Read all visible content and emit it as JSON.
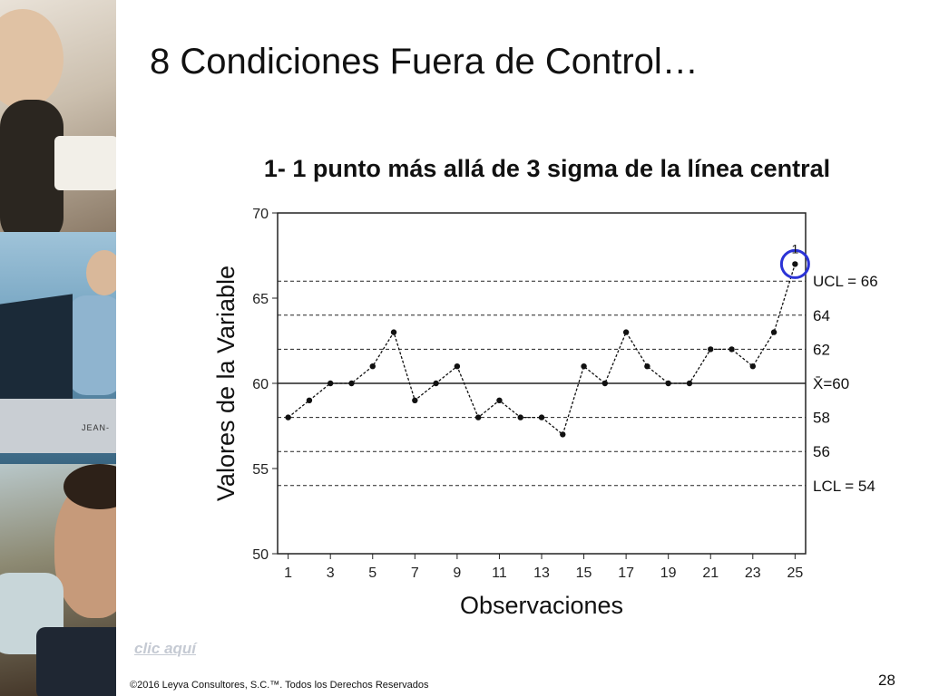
{
  "slide": {
    "title": "8 Condiciones Fuera de Control…",
    "chart_heading": "1- 1 punto más allá de 3 sigma de la línea central",
    "link_label": "clic aquí",
    "copyright": "©2016 Leyva Consultores, S.C.™. Todos los Derechos Reservados",
    "page_number": "28",
    "photo_tag": "JEAN-"
  },
  "colors": {
    "highlight_circle": "#2b33d6",
    "link": "#c5cad3",
    "series": "#111111"
  },
  "chart_data": {
    "type": "line",
    "title": "1- 1 punto más allá de 3 sigma de la línea central",
    "xlabel": "Observaciones",
    "ylabel": "Valores de la Variable",
    "xlim": [
      0.5,
      25.5
    ],
    "ylim": [
      50,
      70
    ],
    "x_ticks": [
      1,
      3,
      5,
      7,
      9,
      11,
      13,
      15,
      17,
      19,
      21,
      23,
      25
    ],
    "y_ticks": [
      50,
      55,
      60,
      65,
      70
    ],
    "x": [
      1,
      2,
      3,
      4,
      5,
      6,
      7,
      8,
      9,
      10,
      11,
      12,
      13,
      14,
      15,
      16,
      17,
      18,
      19,
      20,
      21,
      22,
      23,
      24,
      25
    ],
    "values": [
      58,
      59,
      60,
      60,
      61,
      63,
      59,
      60,
      61,
      58,
      59,
      58,
      58,
      57,
      61,
      60,
      63,
      61,
      60,
      60,
      62,
      62,
      61,
      63,
      67
    ],
    "reference_lines": [
      {
        "label": "UCL = 66",
        "value": 66,
        "style": "dashed"
      },
      {
        "label": "64",
        "value": 64,
        "style": "dashed"
      },
      {
        "label": "62",
        "value": 62,
        "style": "dashed"
      },
      {
        "label": "X̄=60",
        "value": 60,
        "style": "solid"
      },
      {
        "label": "58",
        "value": 58,
        "style": "dashed"
      },
      {
        "label": "56",
        "value": 56,
        "style": "dashed"
      },
      {
        "label": "LCL = 54",
        "value": 54,
        "style": "dashed"
      }
    ],
    "highlight": {
      "x": 25,
      "value": 67,
      "marker_label": "1"
    },
    "grid": true
  }
}
